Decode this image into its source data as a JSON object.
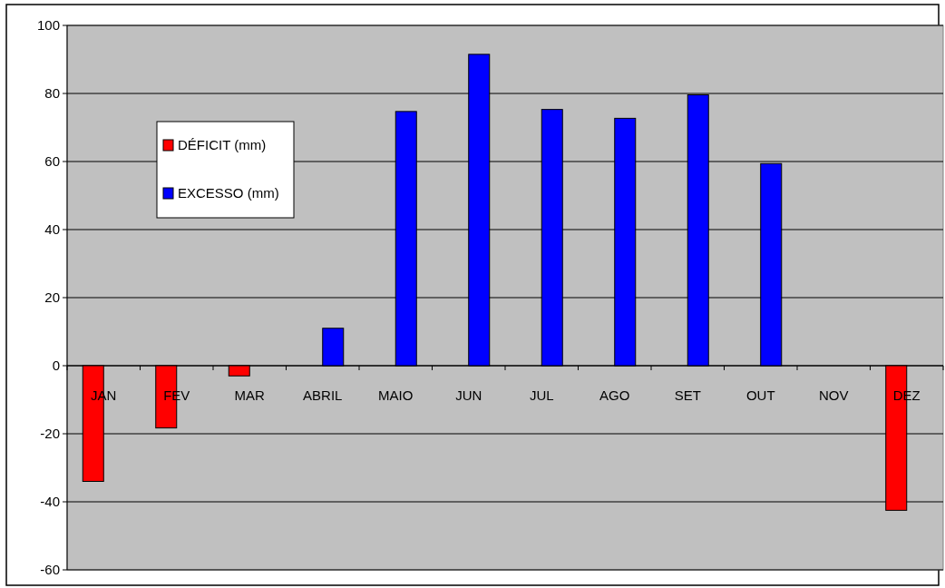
{
  "chart_data": {
    "type": "bar",
    "categories": [
      "JAN",
      "FEV",
      "MAR",
      "ABRIL",
      "MAIO",
      "JUN",
      "JUL",
      "AGO",
      "SET",
      "OUT",
      "NOV",
      "DEZ"
    ],
    "series": [
      {
        "name": "DÉFICIT (mm)",
        "color": "#ff0000",
        "values": [
          -34,
          -18.3,
          -3,
          null,
          null,
          null,
          null,
          null,
          null,
          null,
          null,
          -42.5
        ]
      },
      {
        "name": "EXCESSO (mm)",
        "color": "#0000ff",
        "values": [
          null,
          null,
          null,
          11,
          74.7,
          91.5,
          75.3,
          72.7,
          79.6,
          59.4,
          null,
          null
        ]
      }
    ],
    "ylim": [
      -60,
      100
    ],
    "yticks": [
      -60,
      -40,
      -20,
      0,
      20,
      40,
      60,
      80,
      100
    ],
    "grid": "y",
    "legend": "top left"
  }
}
